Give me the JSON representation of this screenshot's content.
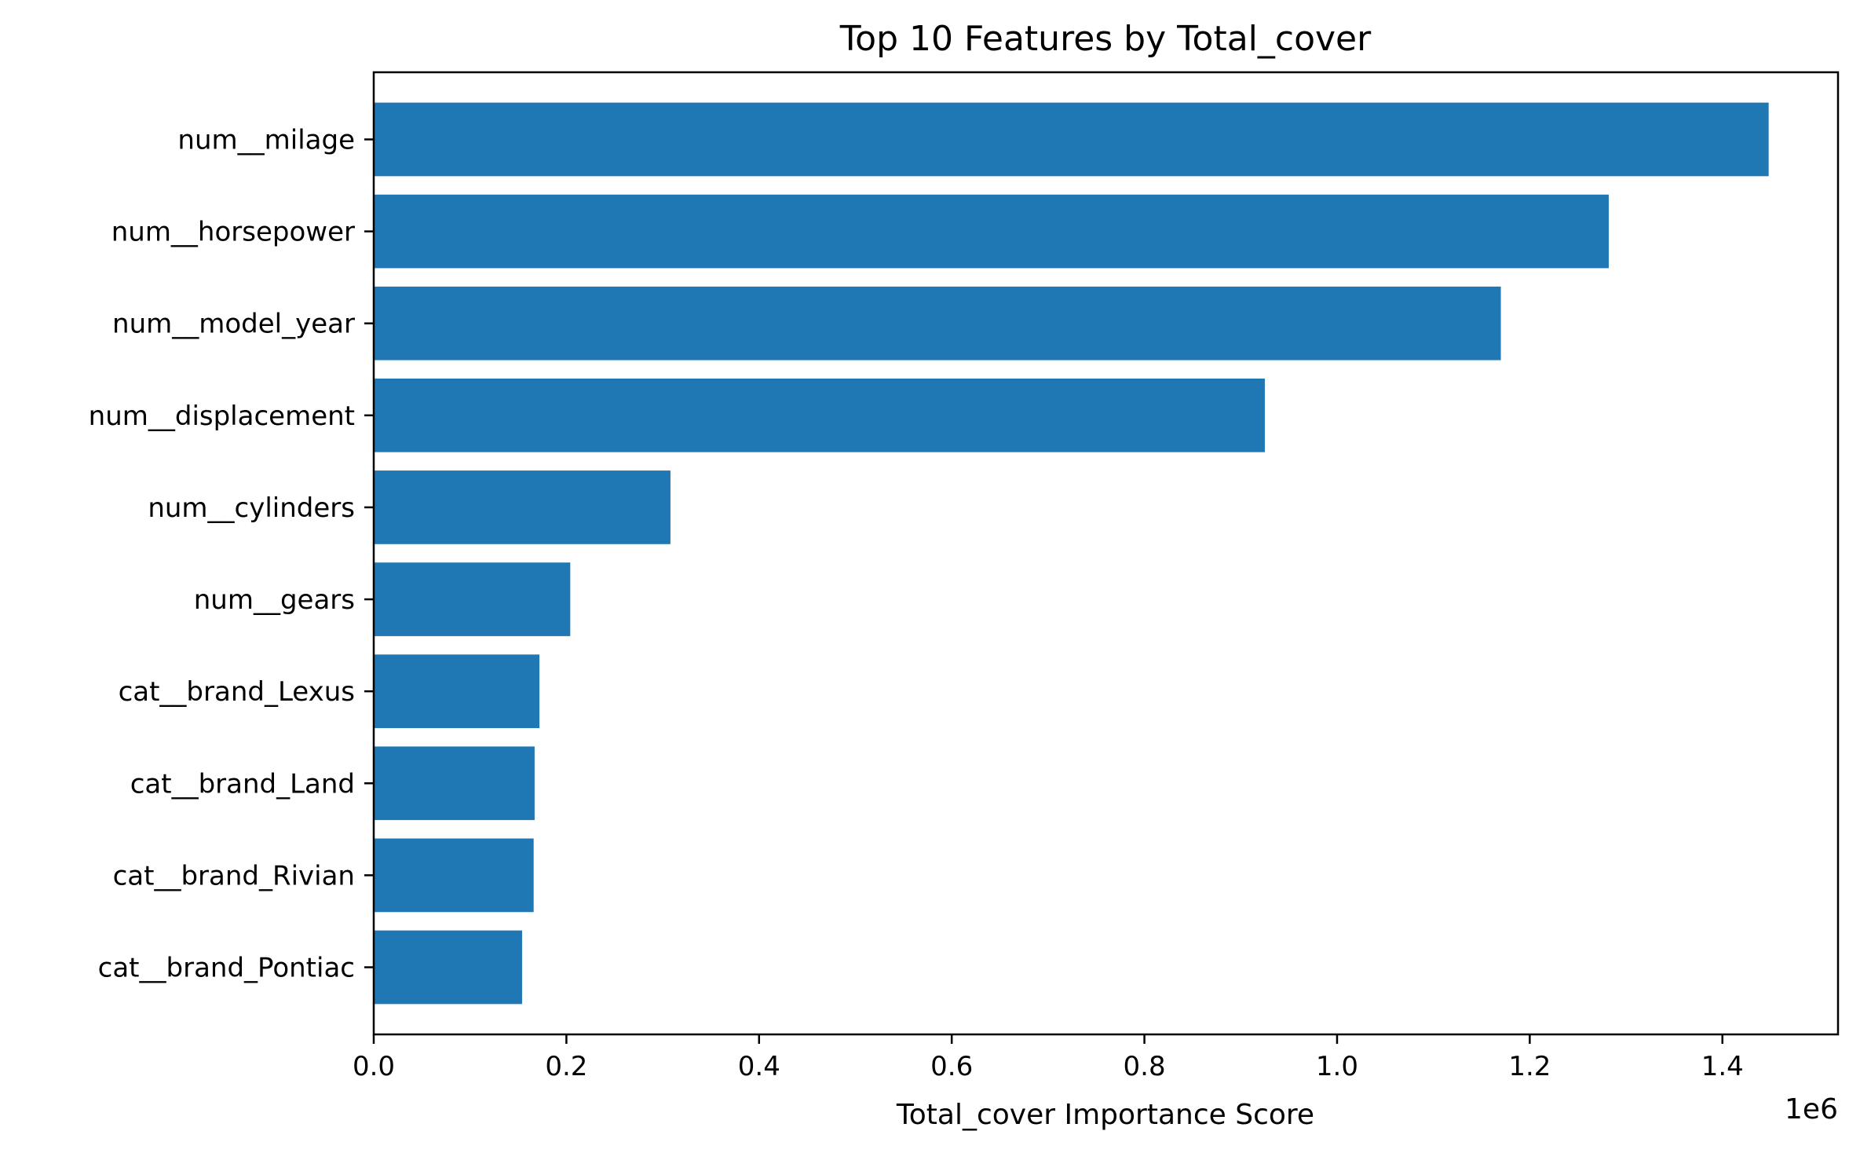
{
  "chart_data": {
    "type": "bar",
    "orientation": "horizontal",
    "title": "Top 10 Features by Total_cover",
    "xlabel": "Total_cover Importance Score",
    "ylabel": "",
    "x_offset_label": "1e6",
    "x_scale_factor": 1000000,
    "xlim": [
      0,
      1520000
    ],
    "xticks": [
      0,
      200000,
      400000,
      600000,
      800000,
      1000000,
      1200000,
      1400000
    ],
    "xtick_labels": [
      "0.0",
      "0.2",
      "0.4",
      "0.6",
      "0.8",
      "1.0",
      "1.2",
      "1.4"
    ],
    "categories": [
      "num__milage",
      "num__horsepower",
      "num__model_year",
      "num__displacement",
      "num__cylinders",
      "num__gears",
      "cat__brand_Lexus",
      "cat__brand_Land",
      "cat__brand_Rivian",
      "cat__brand_Pontiac"
    ],
    "values": [
      1448000,
      1282000,
      1170000,
      925000,
      308000,
      204000,
      172000,
      167000,
      166000,
      154000
    ],
    "bar_color": "#1f77b4",
    "grid": false,
    "legend": "none"
  }
}
